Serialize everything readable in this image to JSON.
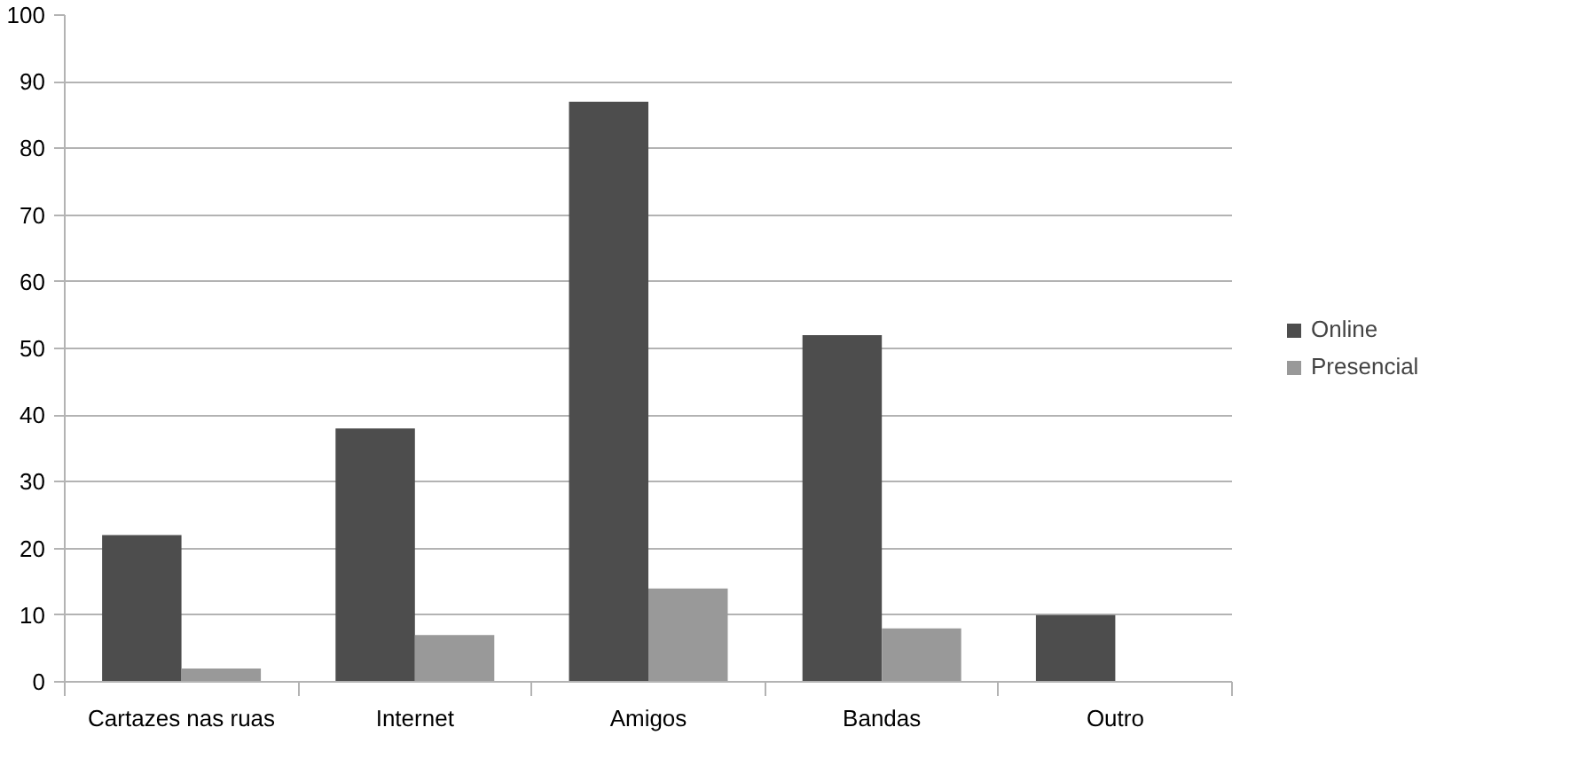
{
  "chart_data": {
    "type": "bar",
    "categories": [
      "Cartazes nas ruas",
      "Internet",
      "Amigos",
      "Bandas",
      "Outro"
    ],
    "series": [
      {
        "name": "Online",
        "color": "#4d4d4d",
        "values": [
          22,
          38,
          87,
          52,
          10
        ]
      },
      {
        "name": "Presencial",
        "color": "#999999",
        "values": [
          2,
          7,
          14,
          8,
          0
        ]
      }
    ],
    "ylim": [
      0,
      100
    ],
    "yticks": [
      0,
      10,
      20,
      30,
      40,
      50,
      60,
      70,
      80,
      90,
      100
    ],
    "grid": "y",
    "legend": "right"
  }
}
